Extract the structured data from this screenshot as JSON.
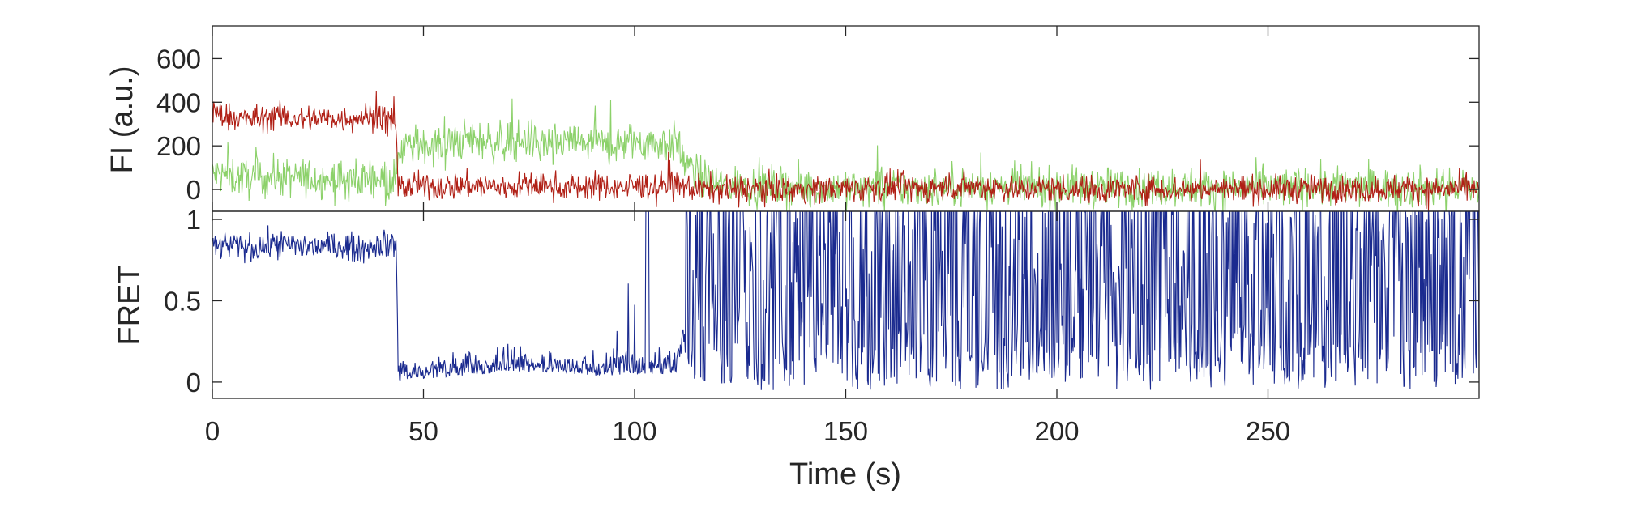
{
  "chart_data": [
    {
      "type": "line",
      "panel": "top",
      "ylabel": "FI (a.u.)",
      "xlabel": "",
      "xlim": [
        0,
        300
      ],
      "ylim": [
        -100,
        750
      ],
      "yticks": [
        0,
        200,
        400,
        600
      ],
      "ytick_labels": [
        "0",
        "200",
        "400",
        "600"
      ],
      "grid": false,
      "legend": "none",
      "series": [
        {
          "color": "#8cd16a",
          "x": [
            0,
            5,
            10,
            15,
            20,
            25,
            30,
            35,
            40,
            43.5,
            44,
            50,
            55,
            60,
            65,
            70,
            75,
            80,
            85,
            90,
            95,
            100,
            105,
            110,
            112,
            115,
            120,
            130,
            140,
            150,
            160,
            170,
            180,
            190,
            200,
            210,
            220,
            230,
            240,
            250,
            260,
            270,
            280,
            290,
            300
          ],
          "values": [
            70,
            60,
            45,
            60,
            50,
            55,
            40,
            50,
            60,
            45,
            190,
            210,
            200,
            230,
            220,
            210,
            230,
            200,
            220,
            210,
            200,
            220,
            210,
            215,
            120,
            60,
            20,
            15,
            10,
            10,
            10,
            10,
            15,
            10,
            10,
            10,
            10,
            10,
            10,
            10,
            10,
            10,
            10,
            10,
            10
          ],
          "noise": 65
        },
        {
          "color": "#b01f15",
          "x": [
            0,
            5,
            10,
            15,
            20,
            25,
            30,
            35,
            40,
            43.5,
            44,
            50,
            55,
            60,
            65,
            70,
            75,
            80,
            85,
            90,
            95,
            100,
            105,
            110,
            112,
            115,
            120,
            130,
            140,
            150,
            160,
            170,
            180,
            190,
            200,
            210,
            220,
            230,
            240,
            250,
            260,
            270,
            280,
            290,
            300
          ],
          "values": [
            350,
            330,
            320,
            340,
            320,
            330,
            320,
            335,
            330,
            310,
            10,
            15,
            10,
            20,
            15,
            10,
            20,
            15,
            10,
            15,
            10,
            15,
            20,
            15,
            10,
            5,
            0,
            5,
            0,
            5,
            10,
            5,
            15,
            5,
            5,
            0,
            5,
            0,
            5,
            0,
            5,
            0,
            5,
            0,
            5
          ],
          "noise": 45
        }
      ]
    },
    {
      "type": "line",
      "panel": "bottom",
      "ylabel": "FRET",
      "xlabel": "Time (s)",
      "xlim": [
        0,
        300
      ],
      "ylim": [
        -0.1,
        1.05
      ],
      "yticks": [
        0,
        0.5,
        1
      ],
      "ytick_labels": [
        "0",
        "0.5",
        "1"
      ],
      "xticks": [
        0,
        50,
        100,
        150,
        200,
        250
      ],
      "xtick_labels": [
        "0",
        "50",
        "100",
        "150",
        "200",
        "250"
      ],
      "grid": false,
      "legend": "none",
      "series": [
        {
          "color": "#1a2a8f",
          "x": [
            0,
            5,
            10,
            15,
            20,
            25,
            30,
            35,
            40,
            43.5,
            44,
            50,
            60,
            70,
            80,
            90,
            100,
            105,
            110,
            112,
            115,
            120,
            150,
            200,
            250,
            300
          ],
          "values": [
            0.83,
            0.84,
            0.82,
            0.85,
            0.84,
            0.83,
            0.84,
            0.82,
            0.85,
            0.84,
            0.05,
            0.06,
            0.08,
            0.1,
            0.1,
            0.08,
            0.08,
            0.08,
            0.1,
            0.3,
            0.45,
            0.45,
            0.45,
            0.45,
            0.45,
            0.45
          ],
          "noise_note": "after ~112 s the trace alternates rapidly across the full range (0 to 1)"
        }
      ]
    }
  ]
}
